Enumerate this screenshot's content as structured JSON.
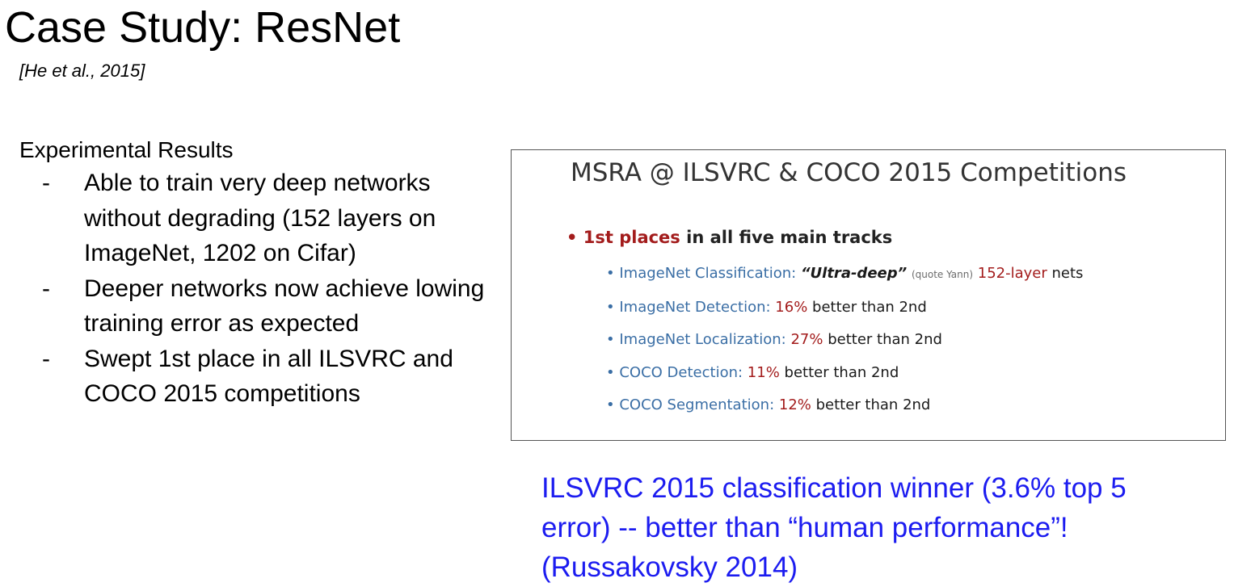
{
  "slide": {
    "title": "Case Study: ResNet",
    "citation": "[He et al., 2015]",
    "section_heading": "Experimental Results",
    "bullets": [
      {
        "dash": "-",
        "text": "Able to train very deep networks without degrading (152 layers on ImageNet, 1202 on Cifar)"
      },
      {
        "dash": "-",
        "text": "Deeper networks now achieve lowing training error as expected"
      },
      {
        "dash": "-",
        "text": "Swept 1st place in all ILSVRC and COCO 2015 competitions"
      }
    ],
    "note": "ILSVRC 2015 classification winner (3.6% top 5 error) -- better than “human performance”! (Russakovsky 2014)"
  },
  "panel": {
    "title": "MSRA @ ILSVRC & COCO 2015 Competitions",
    "main_bullet": "•",
    "main_highlight": "1st places",
    "main_rest": " in all five main tracks",
    "tracks": [
      {
        "bullet": "•",
        "name": "ImageNet Classification:",
        "quote": "“Ultra-deep”",
        "quote_note": "(quote Yann)",
        "highlight": "152-layer",
        "rest": "nets"
      },
      {
        "bullet": "•",
        "name": "ImageNet Detection:",
        "highlight": "16%",
        "rest": "better than 2nd"
      },
      {
        "bullet": "•",
        "name": "ImageNet Localization:",
        "highlight": "27%",
        "rest": "better than 2nd"
      },
      {
        "bullet": "•",
        "name": "COCO Detection:",
        "highlight": "11%",
        "rest": "better than 2nd"
      },
      {
        "bullet": "•",
        "name": "COCO Segmentation:",
        "highlight": "12%",
        "rest": "better than 2nd"
      }
    ]
  },
  "colors": {
    "note_text": "#1c1cf0",
    "highlight_red": "#a31c1c",
    "track_name_blue": "#3a6ea5"
  }
}
